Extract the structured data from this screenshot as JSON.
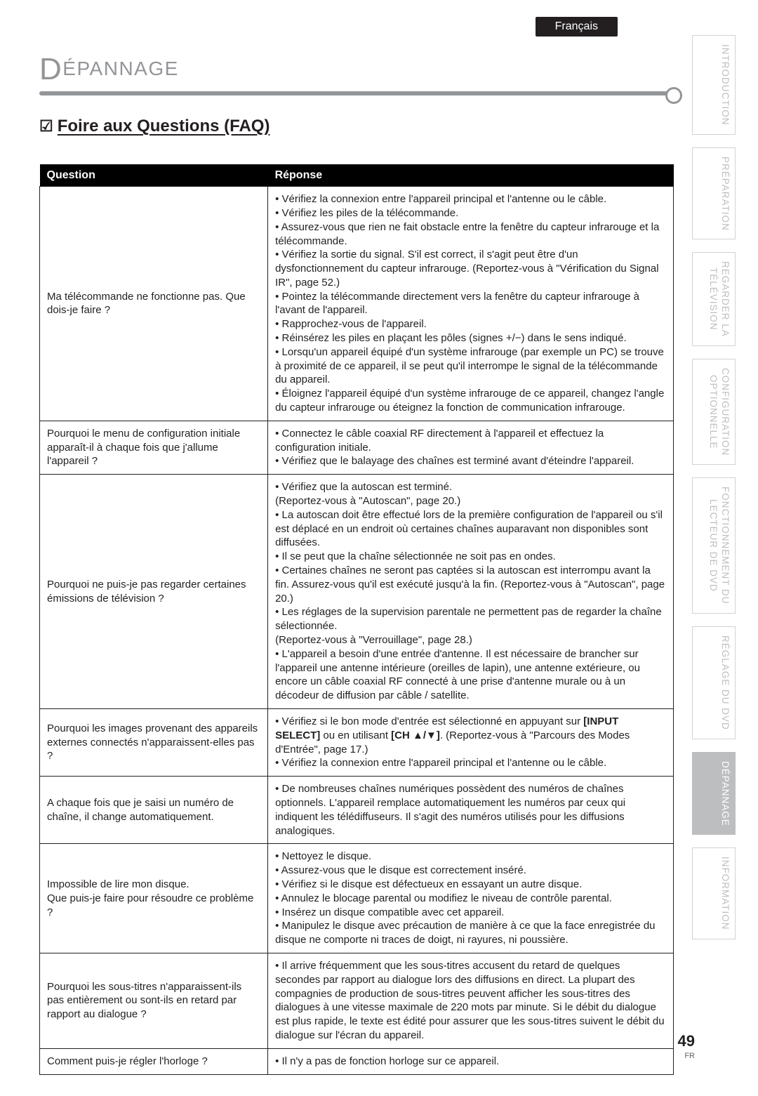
{
  "lang_tab": "Français",
  "header_title": "ÉPANNAGE",
  "faq_heading": "Foire aux Questions (FAQ)",
  "table": {
    "col_question": "Question",
    "col_answer": "Réponse",
    "rows": [
      {
        "q": "Ma télécommande ne fonctionne pas. Que dois-je faire ?",
        "a": "• Vérifiez la connexion entre l'appareil principal et l'antenne ou le câble.\n• Vérifiez les piles de la télécommande.\n• Assurez-vous que rien ne fait obstacle entre la fenêtre du capteur infrarouge et la télécommande.\n• Vérifiez la sortie du signal. S'il est correct, il s'agit peut être d'un dysfonctionnement du capteur infrarouge. (Reportez-vous à \"Vérification du Signal IR\", page 52.)\n• Pointez la télécommande directement vers la fenêtre du capteur infrarouge à l'avant de l'appareil.\n• Rapprochez-vous de l'appareil.\n• Réinsérez les piles en plaçant les pôles (signes +/−) dans le sens indiqué.\n• Lorsqu'un appareil équipé d'un système infrarouge (par exemple un PC) se trouve à proximité de ce appareil, il se peut qu'il interrompe le signal de la télécommande du appareil.\n• Éloignez l'appareil équipé d'un système infrarouge de ce appareil, changez l'angle du capteur infrarouge ou éteignez la fonction de communication infrarouge."
      },
      {
        "q": "Pourquoi le menu de configuration initiale apparaît-il à chaque fois que j'allume l'appareil ?",
        "a": "• Connectez le câble coaxial RF directement à l'appareil et effectuez la configuration initiale.\n• Vérifiez que le balayage des chaînes est terminé avant d'éteindre l'appareil."
      },
      {
        "q": "Pourquoi ne puis-je pas regarder certaines émissions de télévision ?",
        "a": "• Vérifiez que la autoscan est terminé.\n(Reportez-vous à \"Autoscan\", page 20.)\n• La autoscan doit être effectué lors de la première configuration de l'appareil ou s'il est déplacé en un endroit où certaines chaînes auparavant non disponibles sont diffusées.\n• Il se peut que la chaîne sélectionnée ne soit pas en ondes.\n• Certaines chaînes ne seront pas captées si la autoscan est interrompu avant la fin. Assurez-vous qu'il est exécuté jusqu'à la fin. (Reportez-vous à \"Autoscan\", page 20.)\n• Les réglages de la supervision parentale ne permettent pas de regarder la chaîne sélectionnée.\n(Reportez-vous à \"Verrouillage\", page 28.)\n• L'appareil a besoin d'une entrée d'antenne. Il est nécessaire de brancher sur l'appareil une antenne intérieure (oreilles de lapin), une antenne extérieure, ou encore un câble coaxial RF connecté à une prise d'antenne murale ou à un décodeur de diffusion par câble / satellite."
      },
      {
        "q": "Pourquoi les images provenant des appareils externes connectés n'apparaissent-elles pas ?",
        "a_html": "• Vérifiez si le bon mode d'entrée est sélectionné en appuyant sur <b>[INPUT SELECT]</b> ou en utilisant <b>[CH ▲/▼]</b>. (Reportez-vous à \"Parcours des Modes d'Entrée\", page 17.)<br>• Vérifiez la connexion entre l'appareil principal et l'antenne ou le câble."
      },
      {
        "q": "A chaque fois que je saisi un numéro de chaîne, il change automatiquement.",
        "a": "• De nombreuses chaînes numériques possèdent des numéros de chaînes optionnels. L'appareil remplace automatiquement les numéros par ceux qui indiquent les télédiffuseurs. Il s'agit des numéros utilisés pour les diffusions analogiques."
      },
      {
        "q": "Impossible de lire mon disque.\nQue puis-je faire pour résoudre ce problème ?",
        "a": "• Nettoyez le disque.\n• Assurez-vous que le disque est correctement inséré.\n• Vérifiez si le disque est défectueux en essayant un autre disque.\n• Annulez le blocage parental ou modifiez le niveau de contrôle parental.\n• Insérez un disque compatible avec cet appareil.\n• Manipulez le disque avec précaution de manière à ce que la face enregistrée du disque ne comporte ni traces de doigt, ni rayures, ni poussière."
      },
      {
        "q": "Pourquoi les sous-titres n'apparaissent-ils pas entièrement ou sont-ils en retard par rapport au dialogue ?",
        "a": "• Il arrive fréquemment que les sous-titres accusent du retard de quelques secondes par rapport au dialogue lors des diffusions en direct. La plupart des compagnies de production de sous-titres peuvent afficher les sous-titres des dialogues à une vitesse maximale de 220 mots par minute. Si le débit du dialogue est plus rapide, le texte est édité pour assurer que les sous-titres suivent le débit du dialogue sur l'écran du appareil."
      },
      {
        "q": "Comment puis-je régler l'horloge ?",
        "a": "• Il n'y a pas de fonction horloge sur ce appareil."
      }
    ]
  },
  "sidebar": {
    "items": [
      {
        "label": "INTRODUCTION",
        "active": false
      },
      {
        "label": "PRÉPARATION",
        "active": false
      },
      {
        "label": "REGARDER LA\nTÉLÉVISION",
        "active": false
      },
      {
        "label": "CONFIGURATION\nOPTIONNELLE",
        "active": false
      },
      {
        "label": "FONCTIONNEMENT DU\nLECTEUR DE DVD",
        "active": false
      },
      {
        "label": "RÉGLAGE DU DVD",
        "active": false
      },
      {
        "label": "DÉPANNAGE",
        "active": true
      },
      {
        "label": "INFORMATION",
        "active": false
      }
    ]
  },
  "page_number": "49",
  "page_lang": "FR"
}
